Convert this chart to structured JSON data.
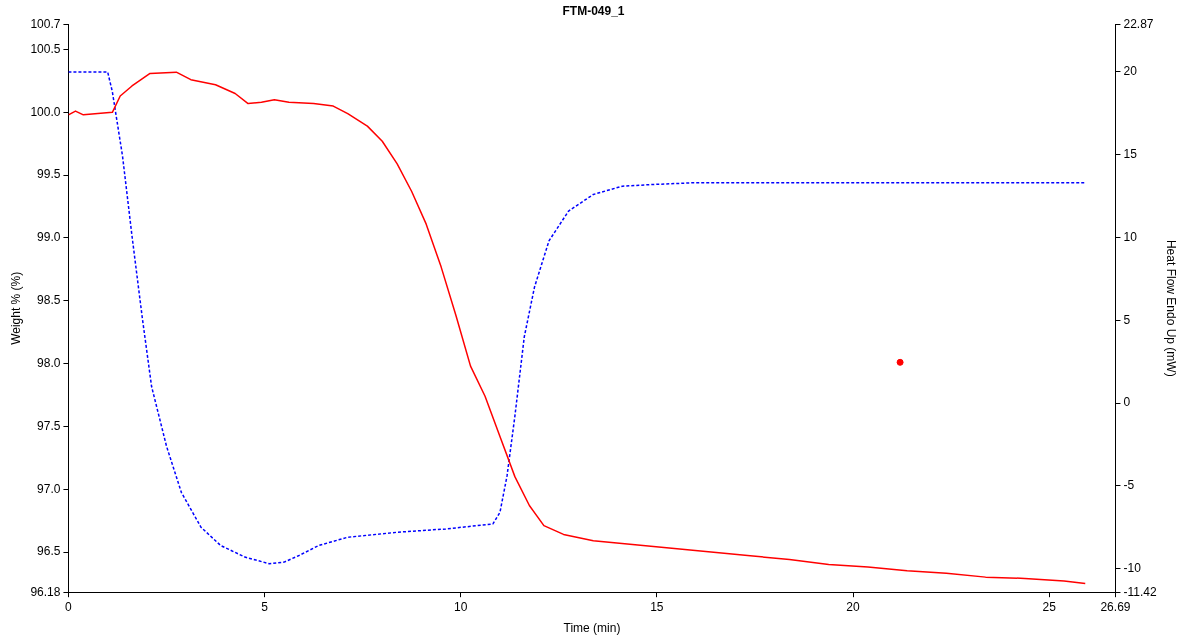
{
  "chart_data": {
    "type": "line",
    "title": "FTM-049_1",
    "xlabel": "Time (min)",
    "ylabel": "Weight % (%)",
    "y2label": "Heat Flow Endo Up (mW)",
    "grid": false,
    "legend": false,
    "marker": "none",
    "xlim": [
      0,
      26.69
    ],
    "xticks": [
      0,
      5,
      10,
      15,
      20,
      25,
      26.69
    ],
    "ylim": [
      96.18,
      100.7
    ],
    "yticks": [
      96.18,
      96.5,
      {
        "value": 97,
        "label": "97.0"
      },
      97.5,
      {
        "value": 98,
        "label": "98.0"
      },
      98.5,
      {
        "value": 99,
        "label": "99.0"
      },
      99.5,
      {
        "value": 100,
        "label": "100.0"
      },
      100.5,
      100.7
    ],
    "y2lim": [
      -11.42,
      22.87
    ],
    "y2ticks": [
      -11.42,
      -10,
      -5,
      0,
      5,
      10,
      15,
      20,
      22.87
    ],
    "series": [
      {
        "type": "line",
        "color": "#ff0000",
        "line_style": "solid",
        "x": [
          0,
          0.18,
          0.38,
          1.12,
          1.32,
          1.62,
          2.08,
          2.75,
          3.12,
          3.75,
          4.25,
          4.58,
          4.92,
          5.25,
          5.62,
          6.25,
          6.75,
          7.12,
          7.62,
          8.0,
          8.38,
          8.75,
          9.12,
          9.5,
          9.88,
          10.25,
          10.62,
          11.0,
          11.38,
          11.75,
          12.12,
          12.62,
          13.38,
          14.38,
          15.38,
          16.38,
          17.38,
          18.38,
          19.38,
          20.38,
          21.38,
          22.38,
          23.38,
          24.38,
          25.38,
          25.92
        ],
        "values": [
          99.98,
          100.01,
          99.98,
          100.0,
          100.13,
          100.21,
          100.31,
          100.32,
          100.26,
          100.22,
          100.15,
          100.07,
          100.08,
          100.1,
          100.08,
          100.07,
          100.05,
          99.99,
          99.89,
          99.77,
          99.59,
          99.37,
          99.11,
          98.77,
          98.38,
          97.98,
          97.74,
          97.42,
          97.1,
          96.87,
          96.71,
          96.64,
          96.59,
          96.56,
          96.53,
          96.5,
          96.47,
          96.44,
          96.4,
          96.38,
          96.35,
          96.33,
          96.3,
          96.29,
          96.27,
          96.25
        ]
      },
      {
        "type": "line",
        "color": "#0000ff",
        "line_style": "dashed",
        "axis": "y2",
        "x": [
          0,
          1.0,
          1.12,
          1.38,
          1.62,
          1.88,
          2.12,
          2.5,
          2.88,
          3.38,
          3.88,
          4.5,
          5.12,
          5.5,
          5.88,
          6.38,
          7.12,
          8.38,
          9.62,
          10.82,
          11.0,
          11.18,
          11.38,
          11.62,
          11.88,
          12.25,
          12.75,
          13.38,
          14.12,
          14.88,
          15.88,
          25.92
        ],
        "values": [
          20,
          20,
          18.8,
          14.9,
          10.1,
          5.2,
          1.0,
          -2.6,
          -5.4,
          -7.5,
          -8.6,
          -9.3,
          -9.7,
          -9.6,
          -9.2,
          -8.6,
          -8.1,
          -7.8,
          -7.6,
          -7.3,
          -6.6,
          -4.4,
          -0.8,
          4.0,
          7.0,
          9.8,
          11.6,
          12.6,
          13.1,
          13.2,
          13.3,
          13.3
        ]
      },
      {
        "type": "scatter",
        "color": "#ff0000",
        "marker": "circle",
        "x": [
          21.2
        ],
        "values": [
          98.01
        ]
      }
    ]
  }
}
